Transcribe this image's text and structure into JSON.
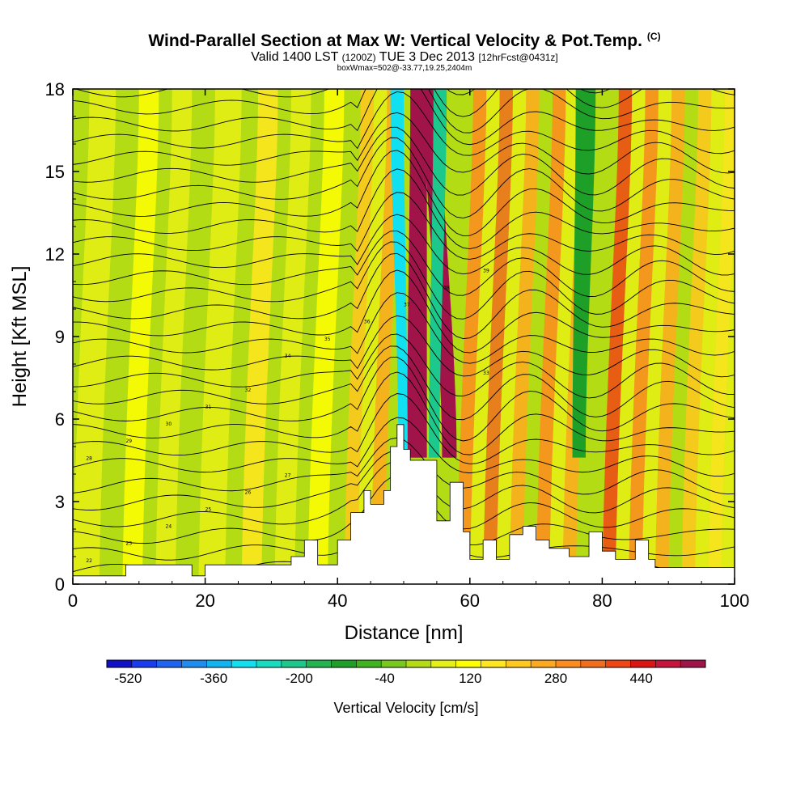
{
  "title": {
    "main": "Wind-Parallel Section at Max W: Vertical Velocity & Pot.Temp.",
    "copyright": "(C)",
    "valid_prefix": "Valid 1400 LST",
    "valid_utc": "(1200Z)",
    "valid_date": "TUE 3 Dec 2013",
    "forecast": "[12hrFcst@0431z]",
    "box_info": "boxWmax=502@-33.77,19.25,2404m"
  },
  "chart_data": {
    "type": "heatmap",
    "title": "Wind-Parallel Section at Max W: Vertical Velocity & Pot.Temp.",
    "xlabel": "Distance [nm]",
    "ylabel": "Height [Kft MSL]",
    "xlim": [
      0,
      100
    ],
    "ylim": [
      0,
      18
    ],
    "xticks": [
      "0",
      "20",
      "40",
      "60",
      "80",
      "100"
    ],
    "yticks": [
      "0",
      "3",
      "6",
      "9",
      "12",
      "15",
      "18"
    ],
    "colorbar": {
      "label": "Vertical Velocity [cm/s]",
      "min": -560,
      "max": 560,
      "step": 40,
      "tick_labels": [
        "-520",
        "-360",
        "-200",
        "-40",
        "120",
        "280",
        "440"
      ],
      "colors": [
        "#1010c8",
        "#1a3cf0",
        "#1e64f0",
        "#1e8cf0",
        "#10b4f0",
        "#10e0f0",
        "#18dcc0",
        "#1cc88c",
        "#22b450",
        "#1ea028",
        "#40b41e",
        "#78c81e",
        "#b4dc14",
        "#e6f014",
        "#ffff00",
        "#ffe61e",
        "#ffc81e",
        "#ffaa1e",
        "#ff8c1e",
        "#f06e1e",
        "#f04614",
        "#dc1414",
        "#c8143c",
        "#a0144a"
      ]
    },
    "terrain_kft": [
      [
        0,
        0.3
      ],
      [
        8,
        0.3
      ],
      [
        8,
        0.7
      ],
      [
        18,
        0.7
      ],
      [
        18,
        0.3
      ],
      [
        20,
        0.3
      ],
      [
        20,
        0.7
      ],
      [
        33,
        0.7
      ],
      [
        33,
        1.0
      ],
      [
        35,
        1.0
      ],
      [
        35,
        1.6
      ],
      [
        37,
        1.6
      ],
      [
        37,
        0.7
      ],
      [
        40,
        0.7
      ],
      [
        40,
        1.6
      ],
      [
        42,
        1.6
      ],
      [
        42,
        2.6
      ],
      [
        44,
        2.6
      ],
      [
        44,
        3.4
      ],
      [
        45,
        3.4
      ],
      [
        45,
        2.9
      ],
      [
        47,
        2.9
      ],
      [
        47,
        3.4
      ],
      [
        48,
        3.4
      ],
      [
        48,
        5.0
      ],
      [
        49,
        5.0
      ],
      [
        49,
        5.8
      ],
      [
        50,
        5.8
      ],
      [
        50,
        4.9
      ],
      [
        51,
        4.9
      ],
      [
        51,
        4.5
      ],
      [
        55,
        4.5
      ],
      [
        55,
        2.3
      ],
      [
        57,
        2.3
      ],
      [
        57,
        3.7
      ],
      [
        59,
        3.7
      ],
      [
        59,
        1.9
      ],
      [
        60,
        1.9
      ],
      [
        60,
        0.9
      ],
      [
        62,
        0.9
      ],
      [
        62,
        1.6
      ],
      [
        64,
        1.6
      ],
      [
        64,
        0.9
      ],
      [
        66,
        0.9
      ],
      [
        66,
        1.8
      ],
      [
        68,
        1.8
      ],
      [
        68,
        2.1
      ],
      [
        70,
        2.1
      ],
      [
        70,
        1.6
      ],
      [
        72,
        1.6
      ],
      [
        72,
        1.3
      ],
      [
        75,
        1.3
      ],
      [
        75,
        1.0
      ],
      [
        78,
        1.0
      ],
      [
        78,
        1.9
      ],
      [
        80,
        1.9
      ],
      [
        80,
        1.2
      ],
      [
        82,
        1.2
      ],
      [
        82,
        0.9
      ],
      [
        85,
        0.9
      ],
      [
        85,
        1.6
      ],
      [
        87,
        1.6
      ],
      [
        87,
        0.9
      ],
      [
        88,
        0.9
      ],
      [
        88,
        0.6
      ],
      [
        100,
        0.6
      ]
    ],
    "w_features": [
      {
        "x": 52,
        "value": 480,
        "kind": "updraft"
      },
      {
        "x": 50,
        "value": -360,
        "kind": "downdraft"
      },
      {
        "x": 57,
        "value": 440,
        "kind": "updraft"
      },
      {
        "x": 55,
        "value": -280,
        "kind": "downdraft"
      },
      {
        "x": 77,
        "value": -200,
        "kind": "downdraft"
      }
    ],
    "isentrope_labels": [
      "39",
      "38",
      "37",
      "36",
      "35",
      "34",
      "33",
      "32",
      "31",
      "30",
      "29",
      "28",
      "27",
      "26",
      "25",
      "24",
      "23",
      "22"
    ]
  }
}
